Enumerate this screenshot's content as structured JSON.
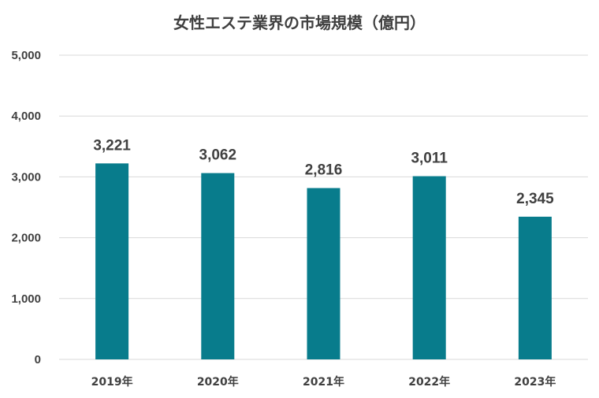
{
  "chart_data": {
    "type": "bar",
    "title": "女性エステ業界の市場規模（億円）",
    "categories": [
      "2019年",
      "2020年",
      "2021年",
      "2022年",
      "2023年"
    ],
    "values": [
      3221,
      3062,
      2816,
      3011,
      2345
    ],
    "data_labels": [
      "3,221",
      "3,062",
      "2,816",
      "3,011",
      "2,345"
    ],
    "yticks": [
      "0",
      "1,000",
      "2,000",
      "3,000",
      "4,000",
      "5,000"
    ],
    "ylim": [
      0,
      5000
    ],
    "xlabel": "",
    "ylabel": "",
    "grid": true,
    "legend": "none",
    "bar_color": "#087c8c"
  }
}
